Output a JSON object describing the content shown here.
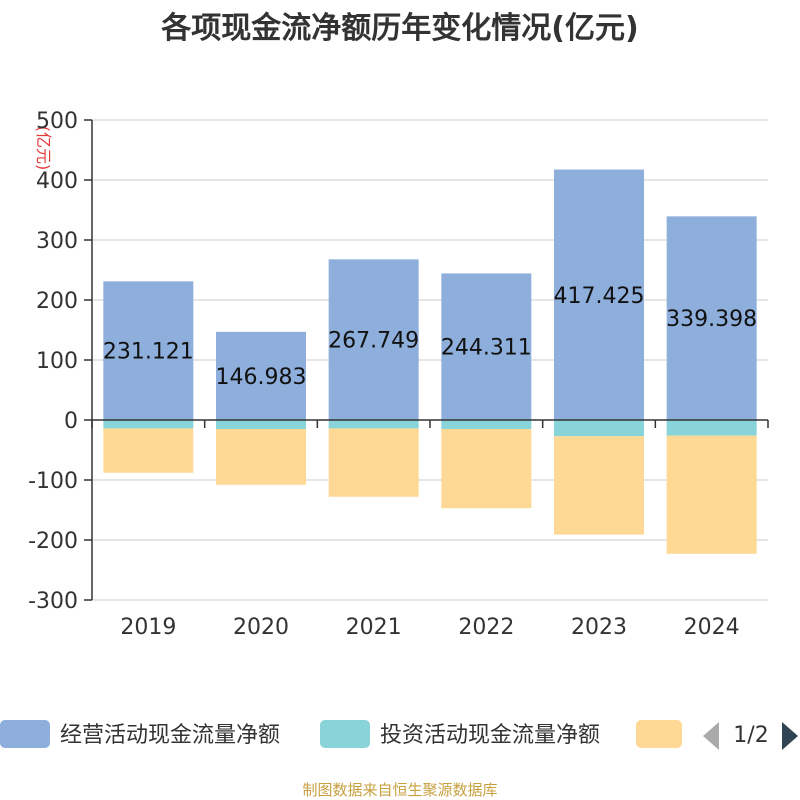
{
  "chart_data": {
    "type": "bar",
    "stacked": true,
    "title": "各项现金流净额历年变化情况(亿元)",
    "y_unit": "(亿元)",
    "categories": [
      "2019",
      "2020",
      "2021",
      "2022",
      "2023",
      "2024"
    ],
    "ylim": [
      -300,
      500
    ],
    "yticks": [
      "500",
      "400",
      "300",
      "200",
      "100",
      "0",
      "-100",
      "-200",
      "-300"
    ],
    "ytick_values": [
      500,
      400,
      300,
      200,
      100,
      0,
      -100,
      -200,
      -300
    ],
    "grid": true,
    "series": [
      {
        "name": "经营活动现金流量净额",
        "color": "#8eaedb",
        "values": [
          231.121,
          146.983,
          267.749,
          244.311,
          417.425,
          339.398
        ],
        "labels": [
          "231.121",
          "146.983",
          "267.749",
          "244.311",
          "417.425",
          "339.398"
        ]
      },
      {
        "name": "投资活动现金流量净额",
        "color": "#88d4d8",
        "values": [
          -14,
          -15,
          -14,
          -15,
          -27,
          -26
        ]
      },
      {
        "name": "",
        "color": "#fdd995",
        "values": [
          -74,
          -93,
          -114,
          -132,
          -164,
          -197
        ]
      }
    ]
  },
  "legend": {
    "page_indicator": "1/2",
    "prev_icon": "triangle-left",
    "next_icon": "triangle-right"
  },
  "footer": {
    "source": "制图数据来自恒生聚源数据库"
  }
}
